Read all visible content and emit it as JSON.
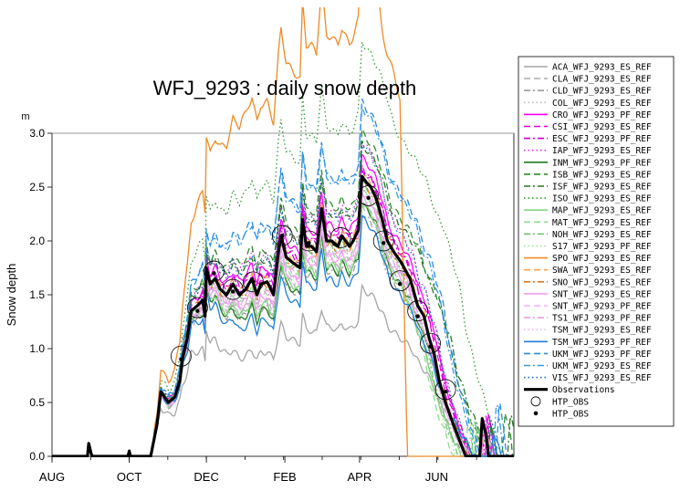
{
  "chart_data": {
    "type": "line",
    "title": "WFJ_9293 : daily snow depth",
    "ylabel": "Snow depth",
    "yunit": "m",
    "xlabel": "",
    "ylim": [
      0,
      3.0
    ],
    "yticks": [
      "0.0",
      "0.5",
      "1.0",
      "1.5",
      "2.0",
      "2.5",
      "3.0"
    ],
    "ytick_values": [
      0,
      0.5,
      1.0,
      1.5,
      2.0,
      2.5,
      3.0
    ],
    "xlim_day": [
      0,
      365
    ],
    "xticks": [
      "AUG",
      "OCT",
      "DEC",
      "FEB",
      "APR",
      "JUN"
    ],
    "xtick_days": [
      0,
      61,
      122,
      184,
      243,
      304
    ],
    "grid": false,
    "legend_position": "right",
    "series": [
      {
        "name": "ACA_WFJ_9293_ES_REF",
        "color": "#a6a6a6",
        "dash": "solid",
        "width": 1.3,
        "factor": 0.6,
        "shift": 0,
        "melt": 4
      },
      {
        "name": "CLA_WFJ_9293_ES_REF",
        "color": "#b3b3b3",
        "dash": "dash",
        "width": 1.3,
        "factor": 0.92,
        "shift": -0.05,
        "melt": 0
      },
      {
        "name": "CLD_WFJ_9293_ES_REF",
        "color": "#9e9e9e",
        "dash": "dashdot",
        "width": 1.3,
        "factor": 0.9,
        "shift": -0.08,
        "melt": -3
      },
      {
        "name": "COL_WFJ_9293_ES_REF",
        "color": "#bdbdbd",
        "dash": "dot",
        "width": 1.3,
        "factor": 0.95,
        "shift": -0.1,
        "melt": 2
      },
      {
        "name": "CRO_WFJ_9293_PF_REF",
        "color": "#ff00ff",
        "dash": "solid",
        "width": 1.3,
        "factor": 1.05,
        "shift": 0.05,
        "melt": 4
      },
      {
        "name": "CSI_WFJ_9293_ES_REF",
        "color": "#e600e6",
        "dash": "dash",
        "width": 1.3,
        "factor": 1.0,
        "shift": 0.08,
        "melt": 2
      },
      {
        "name": "ESC_WFJ_9293_PF_REF",
        "color": "#cc00cc",
        "dash": "dashdot",
        "width": 1.3,
        "factor": 1.02,
        "shift": 0.02,
        "melt": 5
      },
      {
        "name": "IAP_WFJ_9293_ES_REF",
        "color": "#d633d6",
        "dash": "dot",
        "width": 1.3,
        "factor": 1.08,
        "shift": 0.12,
        "melt": 3
      },
      {
        "name": "INM_WFJ_9293_PF_REF",
        "color": "#1f7a1f",
        "dash": "solid",
        "width": 1.3,
        "factor": 1.0,
        "shift": -0.25,
        "melt": 6
      },
      {
        "name": "ISB_WFJ_9293_ES_REF",
        "color": "#2e8b2e",
        "dash": "dash",
        "width": 1.3,
        "factor": 1.12,
        "shift": 0.1,
        "melt": 16
      },
      {
        "name": "ISF_WFJ_9293_ES_REF",
        "color": "#267326",
        "dash": "dashdot",
        "width": 1.3,
        "factor": 1.1,
        "shift": 0.05,
        "melt": 20
      },
      {
        "name": "ISO_WFJ_9293_ES_REF",
        "color": "#339933",
        "dash": "dot",
        "width": 1.3,
        "factor": 1.35,
        "shift": 0.35,
        "melt": 30
      },
      {
        "name": "MAP_WFJ_9293_ES_REF",
        "color": "#80d980",
        "dash": "solid",
        "width": 1.3,
        "factor": 0.95,
        "shift": -0.12,
        "melt": -4
      },
      {
        "name": "MAT_WFJ_9293_ES_REF",
        "color": "#8fdc8f",
        "dash": "dash",
        "width": 1.3,
        "factor": 0.97,
        "shift": -0.05,
        "melt": -10
      },
      {
        "name": "NOH_WFJ_9293_ES_REF",
        "color": "#70c070",
        "dash": "dashdot",
        "width": 1.3,
        "factor": 0.99,
        "shift": -0.02,
        "melt": -6
      },
      {
        "name": "S17_WFJ_9293_PF_REF",
        "color": "#99e099",
        "dash": "dot",
        "width": 1.3,
        "factor": 1.0,
        "shift": 0.0,
        "melt": -8
      },
      {
        "name": "SPO_WFJ_9293_ES_REF",
        "color": "#f08a24",
        "dash": "solid",
        "width": 1.3,
        "factor": 1.6,
        "shift": 0.7,
        "melt": -20
      },
      {
        "name": "SWA_WFJ_9293_ES_REF",
        "color": "#f5a04a",
        "dash": "dash",
        "width": 1.3,
        "factor": 1.0,
        "shift": 0.03,
        "melt": 0
      },
      {
        "name": "SNO_WFJ_9293_ES_REF",
        "color": "#e07820",
        "dash": "dashdot",
        "width": 1.3,
        "factor": 0.98,
        "shift": 0.0,
        "melt": 1
      },
      {
        "name": "SNT_WFJ_9293_ES_REF",
        "color": "#f0a0f0",
        "dash": "solid",
        "width": 1.3,
        "factor": 0.95,
        "shift": -0.05,
        "melt": 0
      },
      {
        "name": "SNT_WFJ_9293_PF_REF",
        "color": "#f5b0f5",
        "dash": "dash",
        "width": 1.3,
        "factor": 0.97,
        "shift": -0.03,
        "melt": 2
      },
      {
        "name": "TS1_WFJ_9293_PF_REF",
        "color": "#e8a0e8",
        "dash": "dashdot",
        "width": 1.3,
        "factor": 0.96,
        "shift": -0.04,
        "melt": 1
      },
      {
        "name": "TSM_WFJ_9293_ES_REF",
        "color": "#f0b8f0",
        "dash": "dot",
        "width": 1.3,
        "factor": 0.94,
        "shift": -0.06,
        "melt": -1
      },
      {
        "name": "TSM_WFJ_9293_PF_REF",
        "color": "#1e7fd8",
        "dash": "solid",
        "width": 1.3,
        "factor": 0.97,
        "shift": -0.3,
        "melt": 8
      },
      {
        "name": "UKM_WFJ_9293_PF_REF",
        "color": "#2a8ae0",
        "dash": "dash",
        "width": 1.3,
        "factor": 1.15,
        "shift": 0.3,
        "melt": 12
      },
      {
        "name": "UKM_WFJ_9293_ES_REF",
        "color": "#3399e6",
        "dash": "dashdot",
        "width": 1.3,
        "factor": 1.14,
        "shift": 0.28,
        "melt": 10
      },
      {
        "name": "VIS_WFJ_9293_ES_REF",
        "color": "#1a6fc0",
        "dash": "dot",
        "width": 1.3,
        "factor": 1.1,
        "shift": 0.05,
        "melt": 5
      },
      {
        "name": "Observations",
        "color": "#000000",
        "dash": "solid",
        "width": 3.2,
        "factor": 1.0,
        "shift": 0,
        "melt": 0
      }
    ],
    "observations_curve": [
      [
        0,
        0
      ],
      [
        28,
        0
      ],
      [
        29,
        0.12
      ],
      [
        31,
        0.02
      ],
      [
        32,
        0
      ],
      [
        60,
        0
      ],
      [
        61,
        0.05
      ],
      [
        62,
        0
      ],
      [
        78,
        0
      ],
      [
        83,
        0.3
      ],
      [
        86,
        0.6
      ],
      [
        92,
        0.5
      ],
      [
        97,
        0.55
      ],
      [
        101,
        0.7
      ],
      [
        103,
        0.9
      ],
      [
        107,
        1.1
      ],
      [
        110,
        1.35
      ],
      [
        115,
        1.4
      ],
      [
        119,
        1.45
      ],
      [
        121,
        1.3
      ],
      [
        122,
        1.75
      ],
      [
        125,
        1.6
      ],
      [
        129,
        1.65
      ],
      [
        133,
        1.55
      ],
      [
        138,
        1.5
      ],
      [
        143,
        1.6
      ],
      [
        148,
        1.5
      ],
      [
        153,
        1.55
      ],
      [
        158,
        1.65
      ],
      [
        162,
        1.5
      ],
      [
        165,
        1.6
      ],
      [
        170,
        1.62
      ],
      [
        173,
        1.55
      ],
      [
        175,
        1.5
      ],
      [
        177,
        1.7
      ],
      [
        179,
        1.9
      ],
      [
        181,
        2.05
      ],
      [
        182,
        2.0
      ],
      [
        185,
        1.85
      ],
      [
        190,
        1.8
      ],
      [
        196,
        1.75
      ],
      [
        198,
        2.2
      ],
      [
        201,
        1.95
      ],
      [
        205,
        1.95
      ],
      [
        209,
        1.9
      ],
      [
        213,
        2.3
      ],
      [
        217,
        2.0
      ],
      [
        221,
        2.0
      ],
      [
        226,
        1.95
      ],
      [
        229,
        2.05
      ],
      [
        232,
        2.0
      ],
      [
        235,
        1.95
      ],
      [
        238,
        2.0
      ],
      [
        242,
        2.1
      ],
      [
        245,
        2.6
      ],
      [
        248,
        2.55
      ],
      [
        252,
        2.5
      ],
      [
        256,
        2.4
      ],
      [
        261,
        2.2
      ],
      [
        265,
        2.0
      ],
      [
        270,
        1.9
      ],
      [
        276,
        1.8
      ],
      [
        283,
        1.65
      ],
      [
        289,
        1.4
      ],
      [
        294,
        1.3
      ],
      [
        298,
        1.1
      ],
      [
        302,
        0.95
      ],
      [
        306,
        0.7
      ],
      [
        311,
        0.5
      ],
      [
        317,
        0.3
      ],
      [
        322,
        0.15
      ],
      [
        327,
        0
      ],
      [
        338,
        0
      ],
      [
        340,
        0.35
      ],
      [
        343,
        0.2
      ],
      [
        345,
        0
      ],
      [
        365,
        0
      ]
    ],
    "htp_obs_circles": [
      {
        "day": 102,
        "value": 0.93
      },
      {
        "day": 115,
        "value": 1.38
      },
      {
        "day": 128,
        "value": 1.72
      },
      {
        "day": 143,
        "value": 1.55
      },
      {
        "day": 159,
        "value": 1.62
      },
      {
        "day": 182,
        "value": 2.05
      },
      {
        "day": 203,
        "value": 2.0
      },
      {
        "day": 228,
        "value": 2.03
      },
      {
        "day": 250,
        "value": 2.42
      },
      {
        "day": 262,
        "value": 2.0
      },
      {
        "day": 275,
        "value": 1.63
      },
      {
        "day": 289,
        "value": 1.35
      },
      {
        "day": 299,
        "value": 1.05
      },
      {
        "day": 311,
        "value": 0.62
      }
    ],
    "htp_obs_dots": [
      {
        "day": 102,
        "value": 0.9
      },
      {
        "day": 115,
        "value": 1.35
      },
      {
        "day": 128,
        "value": 1.7
      },
      {
        "day": 143,
        "value": 1.53
      },
      {
        "day": 159,
        "value": 1.62
      },
      {
        "day": 182,
        "value": 2.05
      },
      {
        "day": 203,
        "value": 1.98
      },
      {
        "day": 228,
        "value": 2.02
      },
      {
        "day": 250,
        "value": 2.4
      },
      {
        "day": 262,
        "value": 1.98
      },
      {
        "day": 275,
        "value": 1.6
      },
      {
        "day": 289,
        "value": 1.3
      },
      {
        "day": 299,
        "value": 1.02
      },
      {
        "day": 311,
        "value": 0.6
      }
    ],
    "legend_extra": [
      {
        "name": "HTP_OBS",
        "marker": "open-circle"
      },
      {
        "name": "HTP_OBS",
        "marker": "filled-dot"
      }
    ]
  }
}
